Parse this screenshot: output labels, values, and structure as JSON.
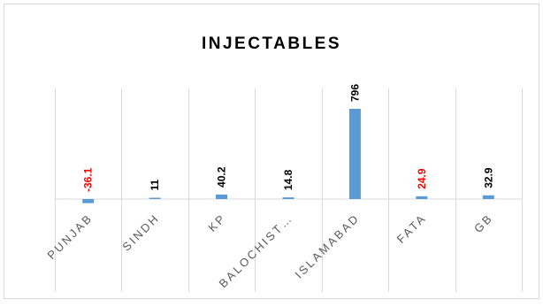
{
  "chart_data": {
    "type": "bar",
    "title": "INJECTABLES",
    "categories": [
      "PUNJAB",
      "SINDH",
      "KP",
      "BALOCHIST…",
      "ISLAMABAD",
      "FATA",
      "GB"
    ],
    "values": [
      -36.1,
      11,
      40.2,
      14.8,
      796,
      24.9,
      32.9
    ],
    "value_labels": [
      "-36.1",
      "11",
      "40.2",
      "14.8",
      "796",
      "24.9",
      "32.9"
    ],
    "label_colors": [
      "#ff0000",
      "#000000",
      "#000000",
      "#000000",
      "#000000",
      "#ff0000",
      "#000000"
    ],
    "bar_color": "#5b9bd5",
    "ylim": [
      -50,
      1000
    ],
    "grid": "vertical category separators",
    "legend": "none",
    "xlabel": "",
    "ylabel": ""
  }
}
